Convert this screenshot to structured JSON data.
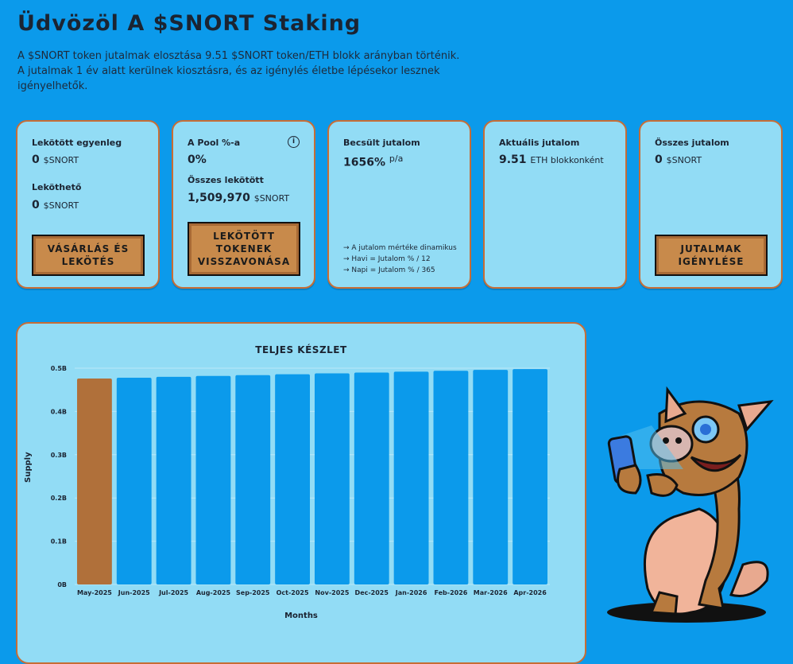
{
  "header": {
    "title": "Üdvözöl A $SNORT Staking",
    "intro": "A $SNORT token jutalmak elosztása 9.51 $SNORT token/ETH blokk arányban történik. A jutalmak 1 év alatt kerülnek kiosztásra, és az igénylés életbe lépésekor lesznek igényelhetők."
  },
  "cards": {
    "balance": {
      "label": "Lekötött egyenleg",
      "value": "0",
      "unit": "$SNORT",
      "label2": "Leköthető",
      "value2": "0",
      "unit2": "$SNORT",
      "button": "Vásárlás és lekötés"
    },
    "pool": {
      "label": "A Pool %-a",
      "value": "0%",
      "label2": "Összes lekötött",
      "value2": "1,509,970",
      "unit2": "$SNORT",
      "info_icon": "info-icon",
      "button": "Lekötött tokenek visszavonása"
    },
    "estimated": {
      "label": "Becsült jutalom",
      "value": "1656%",
      "unit": "p/a",
      "notes": [
        "→ A jutalom mértéke dinamikus",
        "→ Havi = Jutalom % / 12",
        "→ Napi = Jutalom % / 365"
      ]
    },
    "current": {
      "label": "Aktuális jutalom",
      "value": "9.51",
      "unit": "ETH blokkonként"
    },
    "total": {
      "label": "Összes jutalom",
      "value": "0",
      "unit": "$SNORT",
      "button": "Jutalmak igénylése"
    }
  },
  "colors": {
    "background": "#0b9aeb",
    "card": "#92dcf5",
    "card_border": "#c76d35",
    "bar": "#0b9aeb",
    "bar_highlight": "#b0703a",
    "button": "#c88a4b"
  },
  "mascot": "armadillo-mascot-holding-phone",
  "chart_data": {
    "type": "bar",
    "title": "TELJES KÉSZLET",
    "xlabel": "Months",
    "ylabel": "Supply",
    "ylim": [
      0,
      0.5
    ],
    "yticks": [
      "0B",
      "0.1B",
      "0.2B",
      "0.3B",
      "0.4B",
      "0.5B"
    ],
    "categories": [
      "May-2025",
      "Jun-2025",
      "Jul-2025",
      "Aug-2025",
      "Sep-2025",
      "Oct-2025",
      "Nov-2025",
      "Dec-2025",
      "Jan-2026",
      "Feb-2026",
      "Mar-2026",
      "Apr-2026"
    ],
    "values": [
      0.476,
      0.478,
      0.48,
      0.482,
      0.484,
      0.486,
      0.488,
      0.49,
      0.492,
      0.494,
      0.496,
      0.498
    ],
    "highlight_index": 0,
    "grid": true
  }
}
